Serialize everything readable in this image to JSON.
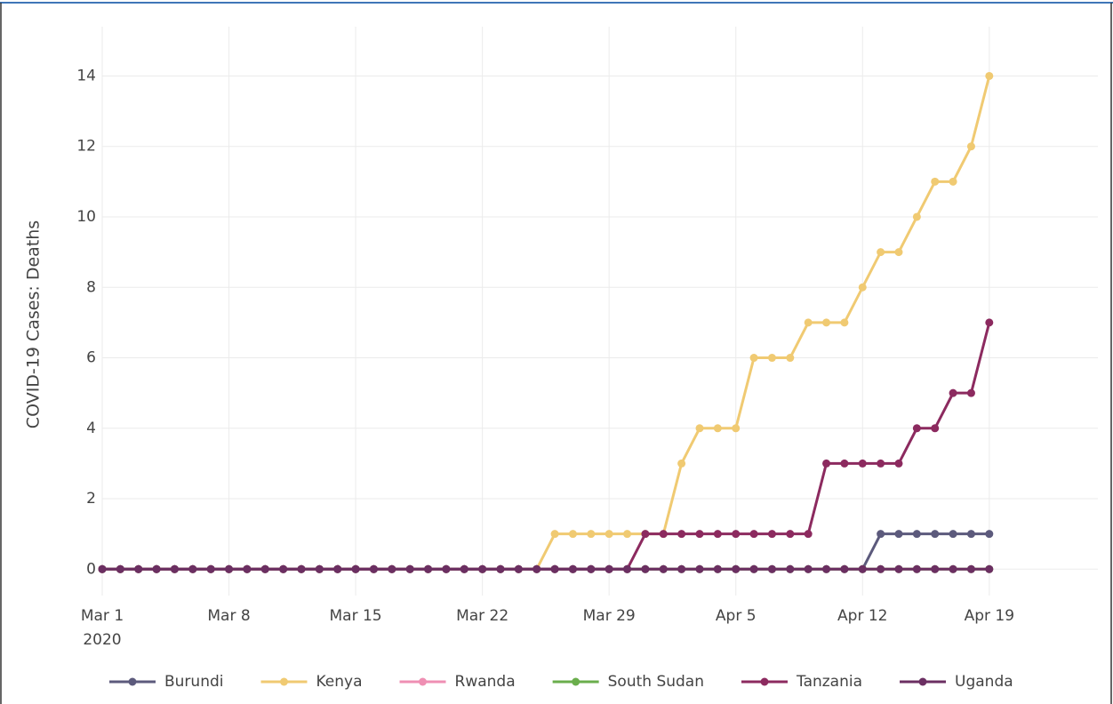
{
  "chart_data": {
    "type": "line",
    "ylabel": "COVID-19 Cases: Deaths",
    "x": [
      "2020-03-01",
      "2020-03-02",
      "2020-03-03",
      "2020-03-04",
      "2020-03-05",
      "2020-03-06",
      "2020-03-07",
      "2020-03-08",
      "2020-03-09",
      "2020-03-10",
      "2020-03-11",
      "2020-03-12",
      "2020-03-13",
      "2020-03-14",
      "2020-03-15",
      "2020-03-16",
      "2020-03-17",
      "2020-03-18",
      "2020-03-19",
      "2020-03-20",
      "2020-03-21",
      "2020-03-22",
      "2020-03-23",
      "2020-03-24",
      "2020-03-25",
      "2020-03-26",
      "2020-03-27",
      "2020-03-28",
      "2020-03-29",
      "2020-03-30",
      "2020-03-31",
      "2020-04-01",
      "2020-04-02",
      "2020-04-03",
      "2020-04-04",
      "2020-04-05",
      "2020-04-06",
      "2020-04-07",
      "2020-04-08",
      "2020-04-09",
      "2020-04-10",
      "2020-04-11",
      "2020-04-12",
      "2020-04-13",
      "2020-04-14",
      "2020-04-15",
      "2020-04-16",
      "2020-04-17",
      "2020-04-18",
      "2020-04-19"
    ],
    "series": [
      {
        "name": "Burundi",
        "color": "#5c5a7c",
        "values": [
          0,
          0,
          0,
          0,
          0,
          0,
          0,
          0,
          0,
          0,
          0,
          0,
          0,
          0,
          0,
          0,
          0,
          0,
          0,
          0,
          0,
          0,
          0,
          0,
          0,
          0,
          0,
          0,
          0,
          0,
          0,
          0,
          0,
          0,
          0,
          0,
          0,
          0,
          0,
          0,
          0,
          0,
          0,
          1,
          1,
          1,
          1,
          1,
          1,
          1
        ]
      },
      {
        "name": "Kenya",
        "color": "#f0ca72",
        "values": [
          0,
          0,
          0,
          0,
          0,
          0,
          0,
          0,
          0,
          0,
          0,
          0,
          0,
          0,
          0,
          0,
          0,
          0,
          0,
          0,
          0,
          0,
          0,
          0,
          0,
          1,
          1,
          1,
          1,
          1,
          1,
          1,
          3,
          4,
          4,
          4,
          6,
          6,
          6,
          7,
          7,
          7,
          8,
          9,
          9,
          10,
          11,
          11,
          12,
          14
        ]
      },
      {
        "name": "Rwanda",
        "color": "#ef8fb3",
        "values": [
          0,
          0,
          0,
          0,
          0,
          0,
          0,
          0,
          0,
          0,
          0,
          0,
          0,
          0,
          0,
          0,
          0,
          0,
          0,
          0,
          0,
          0,
          0,
          0,
          0,
          0,
          0,
          0,
          0,
          0,
          0,
          0,
          0,
          0,
          0,
          0,
          0,
          0,
          0,
          0,
          0,
          0,
          0,
          0,
          0,
          0,
          0,
          0,
          0,
          0
        ]
      },
      {
        "name": "South Sudan",
        "color": "#6aae4c",
        "values": [
          0,
          0,
          0,
          0,
          0,
          0,
          0,
          0,
          0,
          0,
          0,
          0,
          0,
          0,
          0,
          0,
          0,
          0,
          0,
          0,
          0,
          0,
          0,
          0,
          0,
          0,
          0,
          0,
          0,
          0,
          0,
          0,
          0,
          0,
          0,
          0,
          0,
          0,
          0,
          0,
          0,
          0,
          0,
          0,
          0,
          0,
          0,
          0,
          0,
          0
        ]
      },
      {
        "name": "Tanzania",
        "color": "#8c2a5f",
        "values": [
          0,
          0,
          0,
          0,
          0,
          0,
          0,
          0,
          0,
          0,
          0,
          0,
          0,
          0,
          0,
          0,
          0,
          0,
          0,
          0,
          0,
          0,
          0,
          0,
          0,
          0,
          0,
          0,
          0,
          0,
          1,
          1,
          1,
          1,
          1,
          1,
          1,
          1,
          1,
          1,
          3,
          3,
          3,
          3,
          3,
          4,
          4,
          5,
          5,
          7
        ]
      },
      {
        "name": "Uganda",
        "color": "#6b2f62",
        "values": [
          0,
          0,
          0,
          0,
          0,
          0,
          0,
          0,
          0,
          0,
          0,
          0,
          0,
          0,
          0,
          0,
          0,
          0,
          0,
          0,
          0,
          0,
          0,
          0,
          0,
          0,
          0,
          0,
          0,
          0,
          0,
          0,
          0,
          0,
          0,
          0,
          0,
          0,
          0,
          0,
          0,
          0,
          0,
          0,
          0,
          0,
          0,
          0,
          0,
          0
        ]
      }
    ],
    "xlim": [
      "2020-03-01",
      "2020-04-25"
    ],
    "xticks": [
      {
        "value": "2020-03-01",
        "label": "Mar 1"
      },
      {
        "value": "2020-03-08",
        "label": "Mar 8"
      },
      {
        "value": "2020-03-15",
        "label": "Mar 15"
      },
      {
        "value": "2020-03-22",
        "label": "Mar 22"
      },
      {
        "value": "2020-03-29",
        "label": "Mar 29"
      },
      {
        "value": "2020-04-05",
        "label": "Apr 5"
      },
      {
        "value": "2020-04-12",
        "label": "Apr 12"
      },
      {
        "value": "2020-04-19",
        "label": "Apr 19"
      }
    ],
    "x_year_label": "2020",
    "ylim": [
      -0.75,
      15.4
    ],
    "yticks": [
      0,
      2,
      4,
      6,
      8,
      10,
      12,
      14
    ],
    "grid": true,
    "legend": "bottom"
  }
}
